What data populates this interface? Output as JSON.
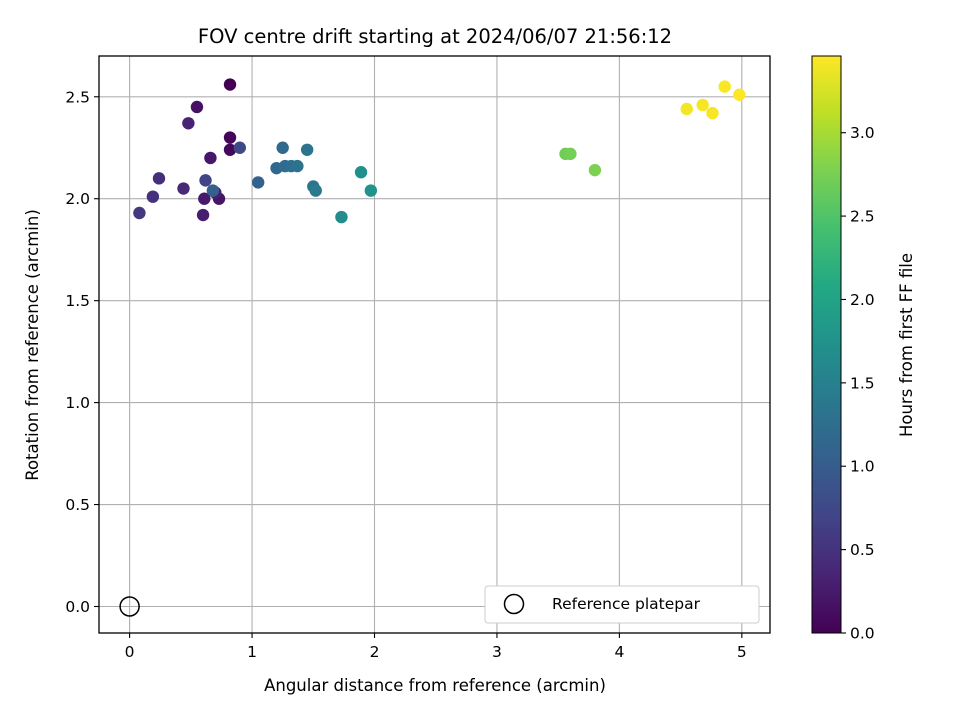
{
  "chart_data": {
    "type": "scatter",
    "title": "FOV centre drift starting at 2024/06/07 21:56:12",
    "xlabel": "Angular distance from reference (arcmin)",
    "ylabel": "Rotation from reference (arcmin)",
    "xlim": [
      -0.25,
      5.23
    ],
    "ylim": [
      -0.13,
      2.7
    ],
    "x_ticks": [
      0,
      1,
      2,
      3,
      4,
      5
    ],
    "x_tick_labels": [
      "0",
      "1",
      "2",
      "3",
      "4",
      "5"
    ],
    "y_ticks": [
      0.0,
      0.5,
      1.0,
      1.5,
      2.0,
      2.5
    ],
    "y_tick_labels": [
      "0.0",
      "0.5",
      "1.0",
      "1.5",
      "2.0",
      "2.5"
    ],
    "grid": true,
    "legend": {
      "position": "lower-right",
      "entries": [
        "Reference platepar"
      ]
    },
    "reference_point": {
      "x": 0.0,
      "y": 0.0,
      "marker": "open-circle"
    },
    "colorbar": {
      "label": "Hours from first FF file",
      "colormap": "viridis",
      "range": [
        0.0,
        3.46
      ],
      "ticks": [
        0.0,
        0.5,
        1.0,
        1.5,
        2.0,
        2.5,
        3.0
      ],
      "tick_labels": [
        "0.0",
        "0.5",
        "1.0",
        "1.5",
        "2.0",
        "2.5",
        "3.0"
      ]
    },
    "series": [
      {
        "points": [
          {
            "x": 0.82,
            "y": 2.56,
            "t": 0.0
          },
          {
            "x": 0.82,
            "y": 2.3,
            "t": 0.05
          },
          {
            "x": 0.82,
            "y": 2.24,
            "t": 0.08
          },
          {
            "x": 0.55,
            "y": 2.45,
            "t": 0.15
          },
          {
            "x": 0.73,
            "y": 2.0,
            "t": 0.2
          },
          {
            "x": 0.66,
            "y": 2.2,
            "t": 0.22
          },
          {
            "x": 0.61,
            "y": 2.0,
            "t": 0.25
          },
          {
            "x": 0.6,
            "y": 1.92,
            "t": 0.28
          },
          {
            "x": 0.7,
            "y": 2.03,
            "t": 0.3
          },
          {
            "x": 0.48,
            "y": 2.37,
            "t": 0.33
          },
          {
            "x": 0.44,
            "y": 2.05,
            "t": 0.4
          },
          {
            "x": 0.24,
            "y": 2.1,
            "t": 0.45
          },
          {
            "x": 0.19,
            "y": 2.01,
            "t": 0.5
          },
          {
            "x": 0.08,
            "y": 1.93,
            "t": 0.55
          },
          {
            "x": 0.62,
            "y": 2.09,
            "t": 0.7
          },
          {
            "x": 0.9,
            "y": 2.25,
            "t": 0.75
          },
          {
            "x": 0.68,
            "y": 2.04,
            "t": 1.05
          },
          {
            "x": 1.05,
            "y": 2.08,
            "t": 1.1
          },
          {
            "x": 1.2,
            "y": 2.15,
            "t": 1.15
          },
          {
            "x": 1.25,
            "y": 2.25,
            "t": 1.18
          },
          {
            "x": 1.27,
            "y": 2.16,
            "t": 1.2
          },
          {
            "x": 1.32,
            "y": 2.16,
            "t": 1.25
          },
          {
            "x": 1.37,
            "y": 2.16,
            "t": 1.3
          },
          {
            "x": 1.45,
            "y": 2.24,
            "t": 1.32
          },
          {
            "x": 1.5,
            "y": 2.06,
            "t": 1.35
          },
          {
            "x": 1.52,
            "y": 2.04,
            "t": 1.4
          },
          {
            "x": 1.73,
            "y": 1.91,
            "t": 1.68
          },
          {
            "x": 1.89,
            "y": 2.13,
            "t": 1.72
          },
          {
            "x": 1.97,
            "y": 2.04,
            "t": 1.75
          },
          {
            "x": 3.56,
            "y": 2.22,
            "t": 2.7
          },
          {
            "x": 3.6,
            "y": 2.22,
            "t": 2.72
          },
          {
            "x": 3.8,
            "y": 2.14,
            "t": 2.78
          },
          {
            "x": 4.55,
            "y": 2.44,
            "t": 3.4
          },
          {
            "x": 4.68,
            "y": 2.46,
            "t": 3.42
          },
          {
            "x": 4.76,
            "y": 2.42,
            "t": 3.43
          },
          {
            "x": 4.86,
            "y": 2.55,
            "t": 3.44
          },
          {
            "x": 4.98,
            "y": 2.51,
            "t": 3.46
          }
        ]
      }
    ]
  }
}
